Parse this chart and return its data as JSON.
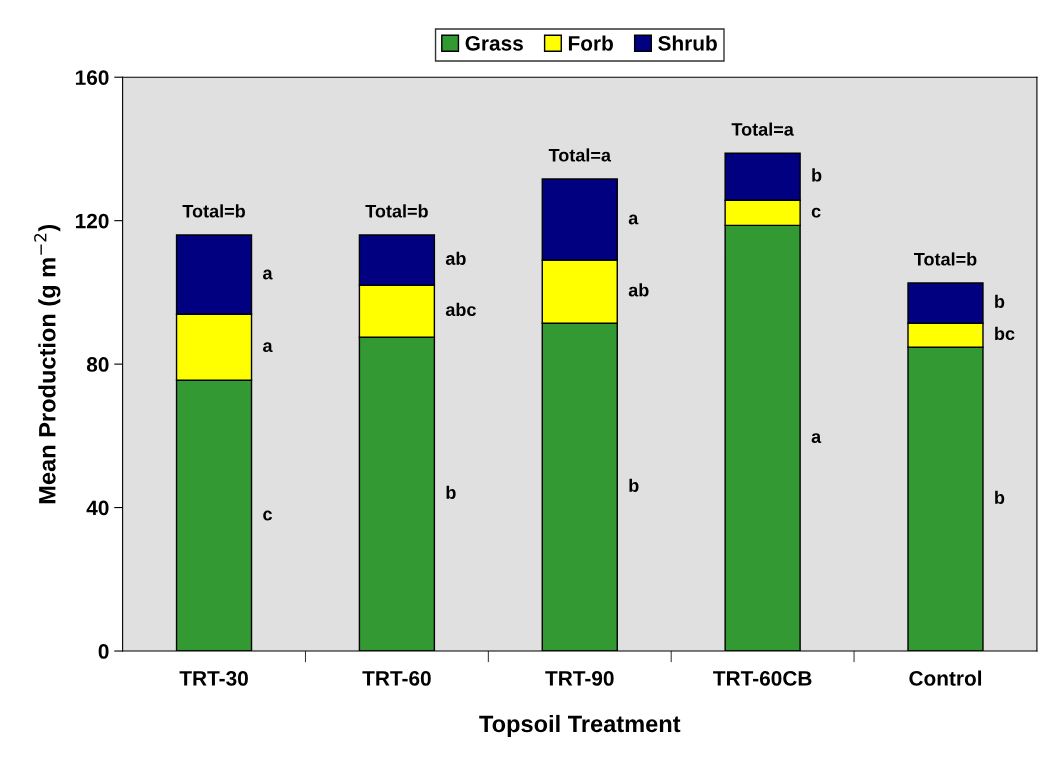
{
  "chart_data": {
    "type": "bar",
    "stacked": true,
    "xlabel": "Topsoil Treatment",
    "ylabel": "Mean Production (g m$^{−2}$)",
    "categories": [
      "TRT-30",
      "TRT-60",
      "TRT-90",
      "TRT-60CB",
      "Control"
    ],
    "series": [
      {
        "name": "Grass",
        "color": "#339933",
        "values": [
          75.5,
          87.5,
          91.4,
          118.7,
          84.7
        ]
      },
      {
        "name": "Forb",
        "color": "#ffff00",
        "values": [
          18.4,
          14.5,
          17.6,
          7.0,
          6.7
        ]
      },
      {
        "name": "Shrub",
        "color": "#000080",
        "values": [
          22.1,
          14.0,
          22.6,
          13.1,
          11.2
        ]
      }
    ],
    "ylim": [
      0,
      160
    ],
    "yticks": [
      0,
      40,
      80,
      120,
      160
    ],
    "grid": false,
    "legend": "top",
    "annotations": [
      "c",
      "a",
      "a",
      "Total=b",
      "b",
      "abc",
      "ab",
      "Total=b",
      "b",
      "ab",
      "a",
      "Total=a",
      "a",
      "c",
      "b",
      "Total=a",
      "b",
      "bc",
      "b",
      "Total=b"
    ]
  }
}
